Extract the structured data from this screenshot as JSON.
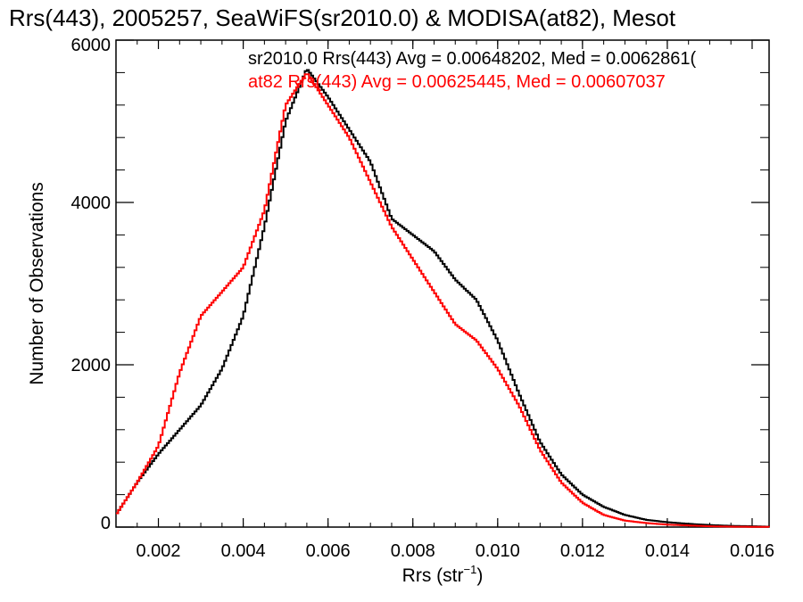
{
  "chart_data": {
    "type": "line",
    "title": "Rrs(443), 2005257, SeaWiFS(sr2010.0) & MODISA(at82), Mesot",
    "xlabel_main": "Rrs (str",
    "xlabel_sup": "−1",
    "xlabel_close": ")",
    "ylabel": "Number of Observations",
    "xlim": [
      0.001,
      0.0164
    ],
    "ylim": [
      0,
      6000
    ],
    "x_ticks": [
      0.002,
      0.004,
      0.006,
      0.008,
      0.01,
      0.012,
      0.014,
      0.016
    ],
    "x_tick_labels": [
      "0.002",
      "0.004",
      "0.006",
      "0.008",
      "0.010",
      "0.012",
      "0.014",
      "0.016"
    ],
    "y_ticks": [
      0,
      2000,
      4000,
      6000
    ],
    "y_tick_labels": [
      "0",
      "2000",
      "4000",
      "6000"
    ],
    "grid": false,
    "annotations": [
      {
        "text": "sr2010.0 Rrs(443) Avg = 0.00648202, Med = 0.0062861(",
        "color": "#000000"
      },
      {
        "text": "at82 Rrs(443) Avg = 0.00625445, Med = 0.00607037",
        "color": "#ff0000"
      }
    ],
    "series": [
      {
        "name": "sr2010.0",
        "color": "#000000",
        "x": [
          0.001,
          0.0015,
          0.002,
          0.0025,
          0.003,
          0.0035,
          0.004,
          0.0045,
          0.005,
          0.0055,
          0.006,
          0.0065,
          0.007,
          0.0075,
          0.008,
          0.0085,
          0.009,
          0.0095,
          0.01,
          0.0105,
          0.011,
          0.0115,
          0.012,
          0.0125,
          0.013,
          0.0135,
          0.014,
          0.0145,
          0.015,
          0.0155,
          0.016,
          0.0164
        ],
        "y": [
          150,
          550,
          900,
          1200,
          1500,
          1950,
          2600,
          3700,
          5000,
          5650,
          5300,
          4900,
          4500,
          3800,
          3600,
          3400,
          3050,
          2800,
          2300,
          1650,
          1050,
          650,
          400,
          250,
          150,
          90,
          60,
          40,
          25,
          15,
          10,
          5
        ]
      },
      {
        "name": "at82",
        "color": "#ff0000",
        "x": [
          0.001,
          0.0015,
          0.002,
          0.0025,
          0.003,
          0.0035,
          0.004,
          0.0045,
          0.005,
          0.0055,
          0.006,
          0.0065,
          0.007,
          0.0075,
          0.008,
          0.0085,
          0.009,
          0.0095,
          0.01,
          0.0105,
          0.011,
          0.0115,
          0.012,
          0.0125,
          0.013,
          0.0135,
          0.014,
          0.0145,
          0.015,
          0.0155,
          0.016,
          0.0164
        ],
        "y": [
          150,
          550,
          1000,
          1900,
          2600,
          2900,
          3200,
          3900,
          5200,
          5600,
          5200,
          4800,
          4250,
          3700,
          3300,
          2900,
          2500,
          2300,
          1950,
          1500,
          950,
          550,
          300,
          150,
          80,
          50,
          30,
          20,
          10,
          5,
          3,
          2
        ]
      }
    ]
  }
}
